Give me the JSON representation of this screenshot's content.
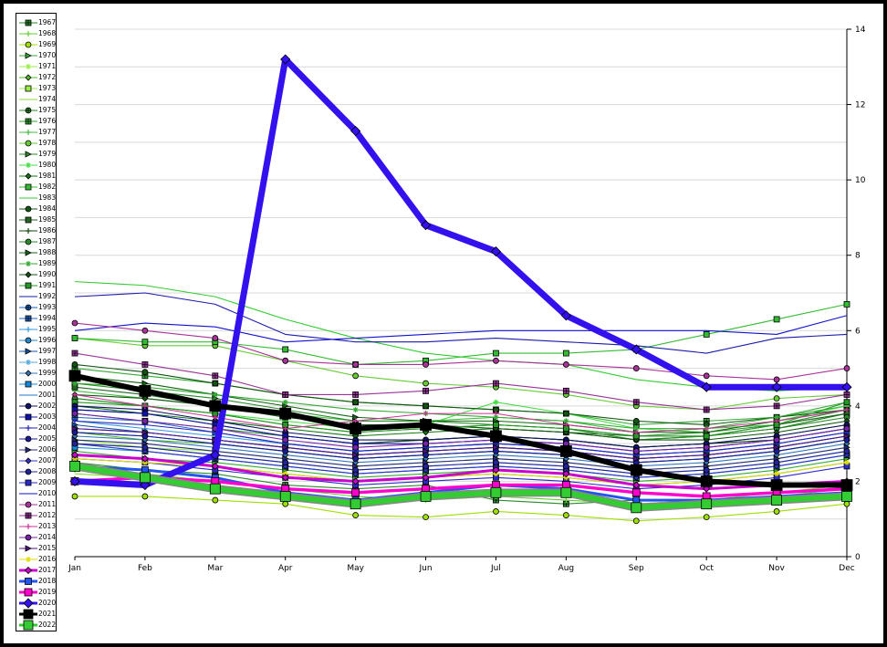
{
  "chart_data": {
    "type": "line",
    "title": "",
    "xlabel": "",
    "ylabel": "",
    "ylim": [
      0,
      14
    ],
    "yticks": [
      0,
      2,
      4,
      6,
      8,
      10,
      12,
      14
    ],
    "y_axis_position": "right",
    "grid": true,
    "legend": "left",
    "categories": [
      "Jan",
      "Feb",
      "Mar",
      "Apr",
      "May",
      "Jun",
      "Jul",
      "Aug",
      "Sep",
      "Oct",
      "Nov",
      "Dec"
    ],
    "series": [
      {
        "name": "1967",
        "color": "#2a8a2a",
        "marker": "square-plus",
        "values": [
          2.5,
          2.3,
          2.2,
          1.9,
          1.8,
          1.9,
          1.5,
          1.4,
          1.5,
          1.5,
          1.6,
          1.7
        ]
      },
      {
        "name": "1968",
        "color": "#66cc33",
        "marker": "plus",
        "values": [
          2.3,
          2.2,
          2.0,
          1.8,
          1.6,
          1.5,
          1.6,
          1.5,
          1.4,
          1.5,
          1.6,
          1.8
        ]
      },
      {
        "name": "1969",
        "color": "#a0e000",
        "marker": "circle",
        "values": [
          1.6,
          1.6,
          1.5,
          1.4,
          1.1,
          1.05,
          1.2,
          1.1,
          0.95,
          1.05,
          1.2,
          1.4
        ]
      },
      {
        "name": "1970",
        "color": "#33aa33",
        "marker": "triangle",
        "values": [
          2.8,
          2.6,
          2.5,
          2.3,
          2.1,
          2.2,
          2.3,
          2.2,
          2.0,
          2.1,
          2.3,
          2.6
        ]
      },
      {
        "name": "1971",
        "color": "#99ee44",
        "marker": "star",
        "values": [
          3.1,
          2.9,
          2.8,
          2.6,
          2.4,
          2.5,
          2.6,
          2.5,
          2.3,
          2.4,
          2.6,
          2.9
        ]
      },
      {
        "name": "1972",
        "color": "#55bb22",
        "marker": "diamond",
        "values": [
          3.3,
          3.1,
          3.0,
          2.8,
          2.6,
          2.7,
          2.8,
          2.7,
          2.5,
          2.6,
          2.8,
          3.1
        ]
      },
      {
        "name": "1973",
        "color": "#99ee44",
        "marker": "square",
        "values": [
          3.0,
          2.8,
          2.6,
          2.4,
          2.2,
          2.3,
          2.4,
          2.3,
          2.1,
          2.2,
          2.4,
          2.7
        ]
      },
      {
        "name": "1974",
        "color": "#88dd33",
        "marker": "none",
        "values": [
          2.2,
          2.1,
          1.9,
          1.7,
          1.5,
          1.6,
          1.7,
          1.6,
          1.4,
          1.5,
          1.7,
          1.9
        ]
      },
      {
        "name": "1975",
        "color": "#2a8a2a",
        "marker": "circle-plus",
        "values": [
          3.8,
          3.6,
          3.4,
          3.2,
          3.0,
          3.1,
          3.2,
          3.1,
          2.9,
          3.0,
          3.2,
          3.5
        ]
      },
      {
        "name": "1976",
        "color": "#33aa33",
        "marker": "square-plus",
        "values": [
          5.0,
          4.8,
          4.6,
          4.3,
          4.1,
          4.0,
          3.9,
          3.8,
          3.5,
          3.6,
          3.7,
          4.0
        ]
      },
      {
        "name": "1977",
        "color": "#44bb44",
        "marker": "plus",
        "values": [
          4.4,
          4.2,
          4.0,
          3.8,
          3.6,
          3.6,
          3.7,
          3.6,
          3.3,
          3.4,
          3.5,
          3.8
        ]
      },
      {
        "name": "1978",
        "color": "#66cc33",
        "marker": "circle",
        "values": [
          5.8,
          5.6,
          5.6,
          5.2,
          4.8,
          4.6,
          4.5,
          4.3,
          4.0,
          3.9,
          4.2,
          4.3
        ]
      },
      {
        "name": "1979",
        "color": "#2a8a2a",
        "marker": "triangle",
        "values": [
          4.6,
          4.4,
          4.2,
          3.9,
          3.6,
          3.6,
          3.5,
          3.4,
          3.2,
          3.3,
          3.5,
          3.9
        ]
      },
      {
        "name": "1980",
        "color": "#44dd44",
        "marker": "star",
        "values": [
          4.2,
          4.0,
          3.8,
          3.6,
          3.4,
          3.5,
          4.1,
          3.8,
          3.4,
          3.3,
          3.6,
          4.0
        ]
      },
      {
        "name": "1981",
        "color": "#117711",
        "marker": "diamond",
        "values": [
          4.0,
          3.8,
          3.6,
          3.4,
          3.2,
          3.3,
          3.4,
          3.3,
          3.1,
          3.2,
          3.4,
          3.8
        ]
      },
      {
        "name": "1982",
        "color": "#33bb33",
        "marker": "square",
        "values": [
          5.8,
          5.7,
          5.7,
          5.5,
          5.1,
          5.2,
          5.4,
          5.4,
          5.5,
          5.9,
          6.3,
          6.7
        ]
      },
      {
        "name": "1983",
        "color": "#33cc33",
        "marker": "none",
        "values": [
          7.3,
          7.2,
          6.9,
          6.3,
          5.8,
          5.4,
          5.2,
          5.1,
          4.7,
          4.5,
          4.4,
          4.5
        ]
      },
      {
        "name": "1984",
        "color": "#115511",
        "marker": "circle",
        "values": [
          5.1,
          4.9,
          4.6,
          4.3,
          4.1,
          4.0,
          3.9,
          3.8,
          3.6,
          3.5,
          3.7,
          3.9
        ]
      },
      {
        "name": "1985",
        "color": "#226622",
        "marker": "square",
        "values": [
          4.5,
          4.3,
          4.0,
          3.7,
          3.5,
          3.5,
          3.4,
          3.3,
          3.2,
          3.2,
          3.5,
          3.8
        ]
      },
      {
        "name": "1986",
        "color": "#114411",
        "marker": "plus",
        "values": [
          3.9,
          3.8,
          3.5,
          3.2,
          3.0,
          3.1,
          3.2,
          3.1,
          2.9,
          3.0,
          3.1,
          3.4
        ]
      },
      {
        "name": "1987",
        "color": "#2a8a2a",
        "marker": "circle",
        "values": [
          4.2,
          4.0,
          3.8,
          3.5,
          3.3,
          3.4,
          3.5,
          3.4,
          3.1,
          3.2,
          3.4,
          3.7
        ]
      },
      {
        "name": "1988",
        "color": "#116611",
        "marker": "triangle",
        "values": [
          4.8,
          4.6,
          4.3,
          4.0,
          3.7,
          3.6,
          3.6,
          3.5,
          3.3,
          3.3,
          3.6,
          3.9
        ]
      },
      {
        "name": "1989",
        "color": "#33aa33",
        "marker": "star",
        "values": [
          4.6,
          4.5,
          4.3,
          4.1,
          3.9,
          3.8,
          3.7,
          3.6,
          3.4,
          3.4,
          3.7,
          4.1
        ]
      },
      {
        "name": "1990",
        "color": "#115511",
        "marker": "diamond",
        "values": [
          4.3,
          4.2,
          4.0,
          3.7,
          3.5,
          3.5,
          3.4,
          3.3,
          3.1,
          3.1,
          3.3,
          3.6
        ]
      },
      {
        "name": "1991",
        "color": "#229922",
        "marker": "square",
        "values": [
          4.1,
          4.0,
          3.8,
          3.5,
          3.3,
          3.4,
          3.5,
          3.4,
          3.2,
          3.2,
          3.5,
          4.1
        ]
      },
      {
        "name": "1992",
        "color": "#1a1aaa",
        "marker": "none",
        "values": [
          6.9,
          7.0,
          6.7,
          5.9,
          5.7,
          5.7,
          5.8,
          5.7,
          5.6,
          5.4,
          5.8,
          5.9
        ]
      },
      {
        "name": "1993",
        "color": "#1166cc",
        "marker": "circle-plus",
        "values": [
          3.3,
          3.2,
          3.0,
          2.8,
          2.6,
          2.7,
          2.8,
          2.7,
          2.5,
          2.6,
          2.8,
          3.1
        ]
      },
      {
        "name": "1994",
        "color": "#2266cc",
        "marker": "square-plus",
        "values": [
          3.7,
          3.6,
          3.3,
          3.0,
          2.8,
          2.9,
          3.0,
          2.9,
          2.7,
          2.8,
          3.0,
          3.3
        ]
      },
      {
        "name": "1995",
        "color": "#3399dd",
        "marker": "plus",
        "values": [
          3.6,
          3.4,
          3.2,
          3.0,
          2.8,
          2.9,
          3.0,
          2.9,
          2.7,
          2.8,
          3.0,
          3.3
        ]
      },
      {
        "name": "1996",
        "color": "#2288cc",
        "marker": "circle",
        "values": [
          3.4,
          3.3,
          3.1,
          2.9,
          2.7,
          2.8,
          2.9,
          2.8,
          2.6,
          2.7,
          2.9,
          3.2
        ]
      },
      {
        "name": "1997",
        "color": "#1155aa",
        "marker": "triangle",
        "values": [
          3.5,
          3.3,
          3.1,
          2.9,
          2.7,
          2.8,
          2.9,
          2.8,
          2.6,
          2.7,
          2.9,
          3.2
        ]
      },
      {
        "name": "1998",
        "color": "#55aadd",
        "marker": "star",
        "values": [
          3.0,
          2.9,
          2.7,
          2.5,
          2.3,
          2.4,
          2.5,
          2.4,
          2.2,
          2.3,
          2.5,
          2.8
        ]
      },
      {
        "name": "1999",
        "color": "#3377bb",
        "marker": "diamond",
        "values": [
          3.2,
          3.1,
          2.9,
          2.7,
          2.5,
          2.6,
          2.7,
          2.6,
          2.4,
          2.5,
          2.7,
          3.0
        ]
      },
      {
        "name": "2000",
        "color": "#1188dd",
        "marker": "square",
        "values": [
          2.9,
          2.8,
          2.6,
          2.4,
          2.2,
          2.3,
          2.4,
          2.3,
          2.1,
          2.2,
          2.4,
          2.7
        ]
      },
      {
        "name": "2001",
        "color": "#2277cc",
        "marker": "none",
        "values": [
          2.7,
          2.6,
          2.4,
          2.2,
          2.0,
          2.1,
          2.2,
          2.1,
          1.9,
          2.0,
          2.2,
          2.5
        ]
      },
      {
        "name": "2002",
        "color": "#111166",
        "marker": "circle",
        "values": [
          4.0,
          3.9,
          3.6,
          3.3,
          3.1,
          3.1,
          3.2,
          3.1,
          2.9,
          3.0,
          3.2,
          3.5
        ]
      },
      {
        "name": "2003",
        "color": "#1111aa",
        "marker": "square",
        "values": [
          3.9,
          3.8,
          3.5,
          3.2,
          3.0,
          3.0,
          3.1,
          3.0,
          2.8,
          2.9,
          3.1,
          3.4
        ]
      },
      {
        "name": "2004",
        "color": "#2222bb",
        "marker": "plus",
        "values": [
          3.6,
          3.5,
          3.3,
          3.0,
          2.8,
          2.9,
          3.0,
          2.9,
          2.7,
          2.8,
          3.0,
          3.3
        ]
      },
      {
        "name": "2005",
        "color": "#1a1a99",
        "marker": "circle",
        "values": [
          3.3,
          3.2,
          3.0,
          2.8,
          2.6,
          2.7,
          2.8,
          2.7,
          2.5,
          2.6,
          2.8,
          3.1
        ]
      },
      {
        "name": "2006",
        "color": "#2a2a88",
        "marker": "triangle",
        "values": [
          3.1,
          3.0,
          2.8,
          2.6,
          2.4,
          2.5,
          2.6,
          2.5,
          2.3,
          2.4,
          2.6,
          2.9
        ]
      },
      {
        "name": "2007",
        "color": "#3333cc",
        "marker": "diamond",
        "values": [
          3.0,
          2.8,
          2.6,
          2.4,
          2.2,
          2.3,
          2.4,
          2.3,
          2.1,
          2.2,
          2.4,
          2.7
        ]
      },
      {
        "name": "2008",
        "color": "#222299",
        "marker": "circle",
        "values": [
          3.0,
          2.9,
          2.7,
          2.5,
          2.3,
          2.4,
          2.5,
          2.4,
          2.2,
          2.3,
          2.5,
          2.8
        ]
      },
      {
        "name": "2009",
        "color": "#2a2acc",
        "marker": "square",
        "values": [
          2.6,
          2.5,
          2.3,
          2.1,
          1.9,
          2.0,
          2.1,
          2.0,
          1.8,
          1.9,
          2.1,
          2.4
        ]
      },
      {
        "name": "2010",
        "color": "#1111cc",
        "marker": "none",
        "values": [
          6.0,
          6.2,
          6.1,
          5.7,
          5.8,
          5.9,
          6.0,
          6.0,
          6.0,
          6.0,
          5.9,
          6.4
        ]
      },
      {
        "name": "2011",
        "color": "#aa3399",
        "marker": "circle",
        "values": [
          6.2,
          6.0,
          5.8,
          5.2,
          5.1,
          5.1,
          5.2,
          5.1,
          5.0,
          4.8,
          4.7,
          5.0
        ]
      },
      {
        "name": "2012",
        "color": "#993399",
        "marker": "square-plus",
        "values": [
          5.4,
          5.1,
          4.8,
          4.3,
          4.3,
          4.4,
          4.6,
          4.4,
          4.1,
          3.9,
          4.0,
          4.3
        ]
      },
      {
        "name": "2013",
        "color": "#cc3399",
        "marker": "plus",
        "values": [
          4.3,
          4.0,
          3.7,
          3.4,
          3.6,
          3.8,
          3.8,
          3.5,
          3.3,
          3.4,
          3.6,
          3.9
        ]
      },
      {
        "name": "2014",
        "color": "#7722aa",
        "marker": "circle",
        "values": [
          3.8,
          3.6,
          3.4,
          3.1,
          2.9,
          3.0,
          3.1,
          3.0,
          2.8,
          2.9,
          3.1,
          3.4
        ]
      },
      {
        "name": "2015",
        "color": "#551188",
        "marker": "triangle",
        "values": [
          3.4,
          3.3,
          3.1,
          2.9,
          2.7,
          2.8,
          2.9,
          2.8,
          2.6,
          2.7,
          2.9,
          3.2
        ]
      },
      {
        "name": "2016",
        "color": "#dddd00",
        "marker": "star",
        "values": [
          2.6,
          2.5,
          2.4,
          2.2,
          2.0,
          2.1,
          2.2,
          2.1,
          1.9,
          2.0,
          2.2,
          2.5
        ]
      },
      {
        "name": "2017",
        "color": "#cc00cc",
        "marker": "diamond",
        "values": [
          2.7,
          2.6,
          2.4,
          2.1,
          2.0,
          2.1,
          2.3,
          2.2,
          1.9,
          1.8,
          1.9,
          2.0
        ]
      },
      {
        "name": "2018",
        "color": "#2255ee",
        "marker": "square",
        "values": [
          2.4,
          2.3,
          2.1,
          1.7,
          1.5,
          1.7,
          1.9,
          1.8,
          1.5,
          1.5,
          1.6,
          1.7
        ]
      },
      {
        "name": "2019",
        "color": "#ff00cc",
        "marker": "square",
        "values": [
          2.0,
          2.1,
          2.0,
          1.8,
          1.7,
          1.8,
          1.9,
          1.9,
          1.7,
          1.6,
          1.7,
          1.8
        ]
      },
      {
        "name": "2020",
        "color": "#3311ee",
        "marker": "diamond",
        "values": [
          2.0,
          1.9,
          2.7,
          13.2,
          11.3,
          8.8,
          8.1,
          6.4,
          5.5,
          4.5,
          4.5,
          4.5
        ]
      },
      {
        "name": "2021",
        "color": "#000000",
        "marker": "square-plus",
        "values": [
          4.8,
          4.4,
          4.0,
          3.8,
          3.4,
          3.5,
          3.2,
          2.8,
          2.3,
          2.0,
          1.9,
          1.9
        ]
      },
      {
        "name": "2022",
        "color": "#33cc33",
        "marker": "square",
        "values": [
          2.4,
          2.1,
          1.8,
          1.6,
          1.4,
          1.6,
          1.7,
          1.7,
          1.3,
          1.4,
          1.5,
          1.6
        ]
      }
    ]
  }
}
